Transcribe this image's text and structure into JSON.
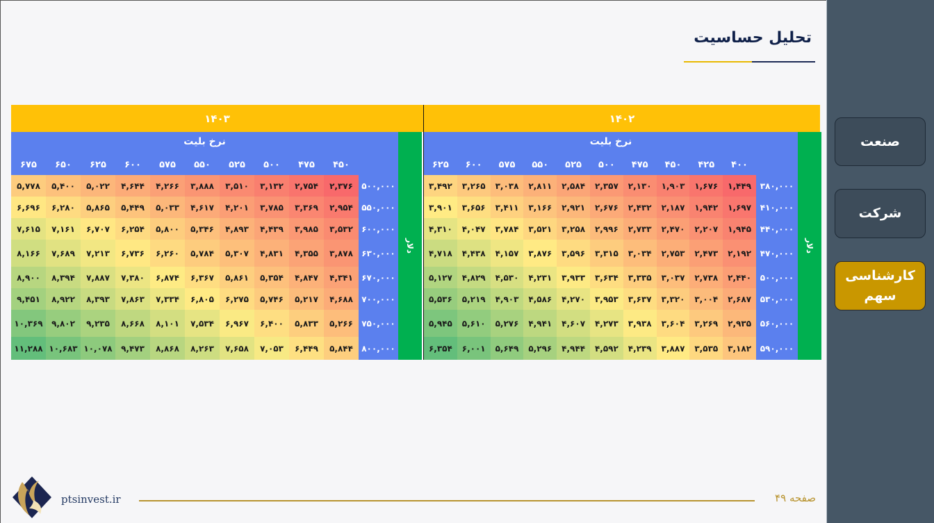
{
  "page": {
    "title": "تحلیل حساسیت",
    "page_label": "صفحه ۴۹",
    "website": "ptsinvest.ir"
  },
  "sidebar": {
    "items": [
      {
        "label": "صنعت",
        "active": false
      },
      {
        "label": "شرکت",
        "active": false
      },
      {
        "label": "کارشناسی سهم",
        "active": true
      }
    ]
  },
  "colors": {
    "header_yellow": "#ffc107",
    "header_blue": "#5b80ee",
    "dollar_green": "#00b050",
    "scale_low": "#f8696b",
    "scale_mid": "#ffeb84",
    "scale_high": "#63be7b"
  },
  "tables": [
    {
      "year": "۱۴۰۲",
      "ticket_label": "نرخ بلیت",
      "dollar_label": "دلار",
      "ticket_rates": [
        "۴۰۰",
        "۴۲۵",
        "۴۵۰",
        "۴۷۵",
        "۵۰۰",
        "۵۲۵",
        "۵۵۰",
        "۵۷۵",
        "۶۰۰",
        "۶۲۵"
      ],
      "dollar_rates": [
        "۳۸۰,۰۰۰",
        "۴۱۰,۰۰۰",
        "۴۴۰,۰۰۰",
        "۴۷۰,۰۰۰",
        "۵۰۰,۰۰۰",
        "۵۳۰,۰۰۰",
        "۵۶۰,۰۰۰",
        "۵۹۰,۰۰۰"
      ],
      "values": [
        [
          "۱,۴۴۹",
          "۱,۶۷۶",
          "۱,۹۰۳",
          "۲,۱۳۰",
          "۲,۳۵۷",
          "۲,۵۸۴",
          "۲,۸۱۱",
          "۳,۰۳۸",
          "۳,۲۶۵",
          "۳,۴۹۲"
        ],
        [
          "۱,۶۹۷",
          "۱,۹۴۲",
          "۲,۱۸۷",
          "۲,۴۳۲",
          "۲,۶۷۶",
          "۲,۹۲۱",
          "۳,۱۶۶",
          "۳,۴۱۱",
          "۳,۶۵۶",
          "۳,۹۰۱"
        ],
        [
          "۱,۹۴۵",
          "۲,۲۰۷",
          "۲,۴۷۰",
          "۲,۷۳۳",
          "۲,۹۹۶",
          "۳,۲۵۸",
          "۳,۵۲۱",
          "۳,۷۸۴",
          "۴,۰۴۷",
          "۴,۳۱۰"
        ],
        [
          "۲,۱۹۲",
          "۲,۴۷۳",
          "۲,۷۵۳",
          "۳,۰۳۴",
          "۳,۳۱۵",
          "۳,۵۹۶",
          "۳,۸۷۶",
          "۴,۱۵۷",
          "۴,۴۳۸",
          "۴,۷۱۸"
        ],
        [
          "۲,۴۴۰",
          "۲,۷۳۸",
          "۳,۰۳۷",
          "۳,۳۳۵",
          "۳,۶۳۴",
          "۳,۹۳۳",
          "۴,۲۳۱",
          "۴,۵۳۰",
          "۴,۸۲۹",
          "۵,۱۲۷"
        ],
        [
          "۲,۶۸۷",
          "۳,۰۰۴",
          "۳,۳۲۰",
          "۳,۶۳۷",
          "۳,۹۵۳",
          "۴,۲۷۰",
          "۴,۵۸۶",
          "۴,۹۰۳",
          "۵,۲۱۹",
          "۵,۵۳۶"
        ],
        [
          "۲,۹۳۵",
          "۳,۲۶۹",
          "۳,۶۰۴",
          "۳,۹۳۸",
          "۴,۲۷۳",
          "۴,۶۰۷",
          "۴,۹۴۱",
          "۵,۲۷۶",
          "۵,۶۱۰",
          "۵,۹۴۵"
        ],
        [
          "۳,۱۸۲",
          "۳,۵۳۵",
          "۳,۸۸۷",
          "۴,۲۳۹",
          "۴,۵۹۲",
          "۴,۹۴۴",
          "۵,۲۹۶",
          "۵,۶۴۹",
          "۶,۰۰۱",
          "۶,۳۵۴"
        ]
      ]
    },
    {
      "year": "۱۴۰۳",
      "ticket_label": "نرخ بلیت",
      "dollar_label": "دلار",
      "ticket_rates": [
        "۴۵۰",
        "۴۷۵",
        "۵۰۰",
        "۵۲۵",
        "۵۵۰",
        "۵۷۵",
        "۶۰۰",
        "۶۲۵",
        "۶۵۰",
        "۶۷۵"
      ],
      "dollar_rates": [
        "۵۰۰,۰۰۰",
        "۵۵۰,۰۰۰",
        "۶۰۰,۰۰۰",
        "۶۳۰,۰۰۰",
        "۶۷۰,۰۰۰",
        "۷۰۰,۰۰۰",
        "۷۵۰,۰۰۰",
        "۸۰۰,۰۰۰"
      ],
      "values": [
        [
          "۲,۳۷۶",
          "۲,۷۵۴",
          "۳,۱۳۲",
          "۳,۵۱۰",
          "۳,۸۸۸",
          "۴,۲۶۶",
          "۴,۶۴۴",
          "۵,۰۲۲",
          "۵,۴۰۰",
          "۵,۷۷۸"
        ],
        [
          "۲,۹۵۴",
          "۳,۳۶۹",
          "۳,۷۸۵",
          "۴,۲۰۱",
          "۴,۶۱۷",
          "۵,۰۳۳",
          "۵,۴۴۹",
          "۵,۸۶۵",
          "۶,۲۸۰",
          "۶,۶۹۶"
        ],
        [
          "۳,۵۳۲",
          "۳,۹۸۵",
          "۴,۴۳۹",
          "۴,۸۹۳",
          "۵,۳۴۶",
          "۵,۸۰۰",
          "۶,۲۵۴",
          "۶,۷۰۷",
          "۷,۱۶۱",
          "۷,۶۱۵"
        ],
        [
          "۳,۸۷۸",
          "۴,۳۵۵",
          "۴,۸۳۱",
          "۵,۳۰۷",
          "۵,۷۸۴",
          "۶,۲۶۰",
          "۶,۷۳۶",
          "۷,۲۱۳",
          "۷,۶۸۹",
          "۸,۱۶۶"
        ],
        [
          "۴,۳۴۱",
          "۴,۸۴۷",
          "۵,۳۵۴",
          "۵,۸۶۱",
          "۶,۳۶۷",
          "۶,۸۷۴",
          "۷,۳۸۰",
          "۷,۸۸۷",
          "۸,۳۹۴",
          "۸,۹۰۰"
        ],
        [
          "۴,۶۸۸",
          "۵,۲۱۷",
          "۵,۷۴۶",
          "۶,۲۷۵",
          "۶,۸۰۵",
          "۷,۳۳۴",
          "۷,۸۶۳",
          "۸,۳۹۳",
          "۸,۹۲۲",
          "۹,۴۵۱"
        ],
        [
          "۵,۲۶۶",
          "۵,۸۳۳",
          "۶,۴۰۰",
          "۶,۹۶۷",
          "۷,۵۳۴",
          "۸,۱۰۱",
          "۸,۶۶۸",
          "۹,۲۳۵",
          "۹,۸۰۲",
          "۱۰,۳۶۹"
        ],
        [
          "۵,۸۴۴",
          "۶,۴۴۹",
          "۷,۰۵۳",
          "۷,۶۵۸",
          "۸,۲۶۳",
          "۸,۸۶۸",
          "۹,۴۷۳",
          "۱۰,۰۷۸",
          "۱۰,۶۸۳",
          "۱۱,۲۸۸"
        ]
      ]
    }
  ]
}
